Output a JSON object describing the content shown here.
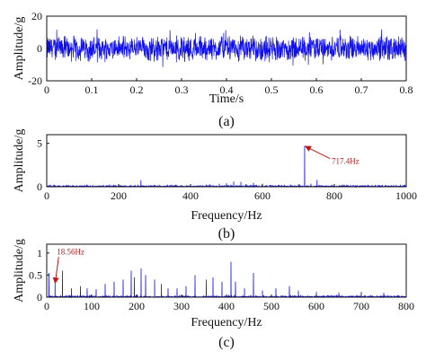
{
  "chart_data": [
    {
      "type": "line",
      "panel_label": "(a)",
      "xlabel": "Time/s",
      "ylabel": "Amplitude/g",
      "xlim": [
        0,
        0.8
      ],
      "ylim": [
        -20,
        20
      ],
      "xticks": [
        "0",
        "0.1",
        "0.2",
        "0.3",
        "0.4",
        "0.5",
        "0.6",
        "0.7",
        "0.8"
      ],
      "yticks": [
        "20",
        "0",
        "-20"
      ],
      "grid": false,
      "color": "#1010ee",
      "series": [
        {
          "amplitude_range": [
            -9,
            9
          ],
          "occasional_peaks": [
            -12,
            12
          ]
        }
      ]
    },
    {
      "type": "line",
      "panel_label": "(b)",
      "xlabel": "Frequency/Hz",
      "ylabel": "Amplitude/g",
      "xlim": [
        0,
        1000
      ],
      "ylim": [
        0,
        6
      ],
      "xticks": [
        "0",
        "200",
        "400",
        "600",
        "800",
        "1000"
      ],
      "yticks": [
        "5",
        "0"
      ],
      "grid": false,
      "color": "#1010ee",
      "peaks": [
        {
          "x": 95,
          "y": 0.15
        },
        {
          "x": 175,
          "y": 0.25
        },
        {
          "x": 262,
          "y": 0.75
        },
        {
          "x": 330,
          "y": 0.12
        },
        {
          "x": 420,
          "y": 0.2
        },
        {
          "x": 455,
          "y": 0.25
        },
        {
          "x": 480,
          "y": 0.35
        },
        {
          "x": 500,
          "y": 0.4
        },
        {
          "x": 520,
          "y": 0.6
        },
        {
          "x": 540,
          "y": 0.55
        },
        {
          "x": 555,
          "y": 0.3
        },
        {
          "x": 575,
          "y": 0.45
        },
        {
          "x": 600,
          "y": 0.35
        },
        {
          "x": 620,
          "y": 0.2
        },
        {
          "x": 660,
          "y": 0.15
        },
        {
          "x": 700,
          "y": 0.3
        },
        {
          "x": 717.4,
          "y": 4.7
        },
        {
          "x": 735,
          "y": 0.35
        },
        {
          "x": 752,
          "y": 0.8
        },
        {
          "x": 860,
          "y": 0.12
        },
        {
          "x": 930,
          "y": 0.1
        }
      ],
      "annotation": {
        "text": "717.4Hz",
        "x": 717.4,
        "y": 4.7
      }
    },
    {
      "type": "line",
      "panel_label": "(c)",
      "xlabel": "Frequency/Hz",
      "ylabel": "Amplitude/g",
      "xlim": [
        0,
        800
      ],
      "ylim": [
        0,
        1.2
      ],
      "xticks": [
        "0",
        "100",
        "200",
        "300",
        "400",
        "500",
        "600",
        "700",
        "800"
      ],
      "yticks": [
        "1",
        "0.5",
        "0"
      ],
      "grid": false,
      "color": "#1010ee",
      "peaks": [
        {
          "x": 5,
          "y": 0.55
        },
        {
          "x": 18.56,
          "y": 0.3
        },
        {
          "x": 35,
          "y": 0.6
        },
        {
          "x": 55,
          "y": 0.2
        },
        {
          "x": 75,
          "y": 0.25
        },
        {
          "x": 90,
          "y": 0.2
        },
        {
          "x": 110,
          "y": 0.18
        },
        {
          "x": 130,
          "y": 0.3
        },
        {
          "x": 150,
          "y": 0.35
        },
        {
          "x": 170,
          "y": 0.4
        },
        {
          "x": 188,
          "y": 0.6
        },
        {
          "x": 195,
          "y": 0.45
        },
        {
          "x": 210,
          "y": 0.65
        },
        {
          "x": 220,
          "y": 0.5
        },
        {
          "x": 240,
          "y": 0.4
        },
        {
          "x": 255,
          "y": 0.3
        },
        {
          "x": 270,
          "y": 0.2
        },
        {
          "x": 290,
          "y": 0.2
        },
        {
          "x": 310,
          "y": 0.25
        },
        {
          "x": 330,
          "y": 0.5
        },
        {
          "x": 355,
          "y": 0.4
        },
        {
          "x": 370,
          "y": 0.45
        },
        {
          "x": 390,
          "y": 0.35
        },
        {
          "x": 410,
          "y": 0.8
        },
        {
          "x": 420,
          "y": 0.35
        },
        {
          "x": 440,
          "y": 0.2
        },
        {
          "x": 460,
          "y": 0.55
        },
        {
          "x": 480,
          "y": 0.15
        },
        {
          "x": 510,
          "y": 0.2
        },
        {
          "x": 540,
          "y": 0.25
        },
        {
          "x": 560,
          "y": 0.15
        },
        {
          "x": 600,
          "y": 0.12
        },
        {
          "x": 650,
          "y": 0.1
        },
        {
          "x": 700,
          "y": 0.12
        },
        {
          "x": 750,
          "y": 0.1
        }
      ],
      "annotation": {
        "text": "18.56Hz",
        "x": 18.56,
        "y": 0.3
      }
    }
  ]
}
